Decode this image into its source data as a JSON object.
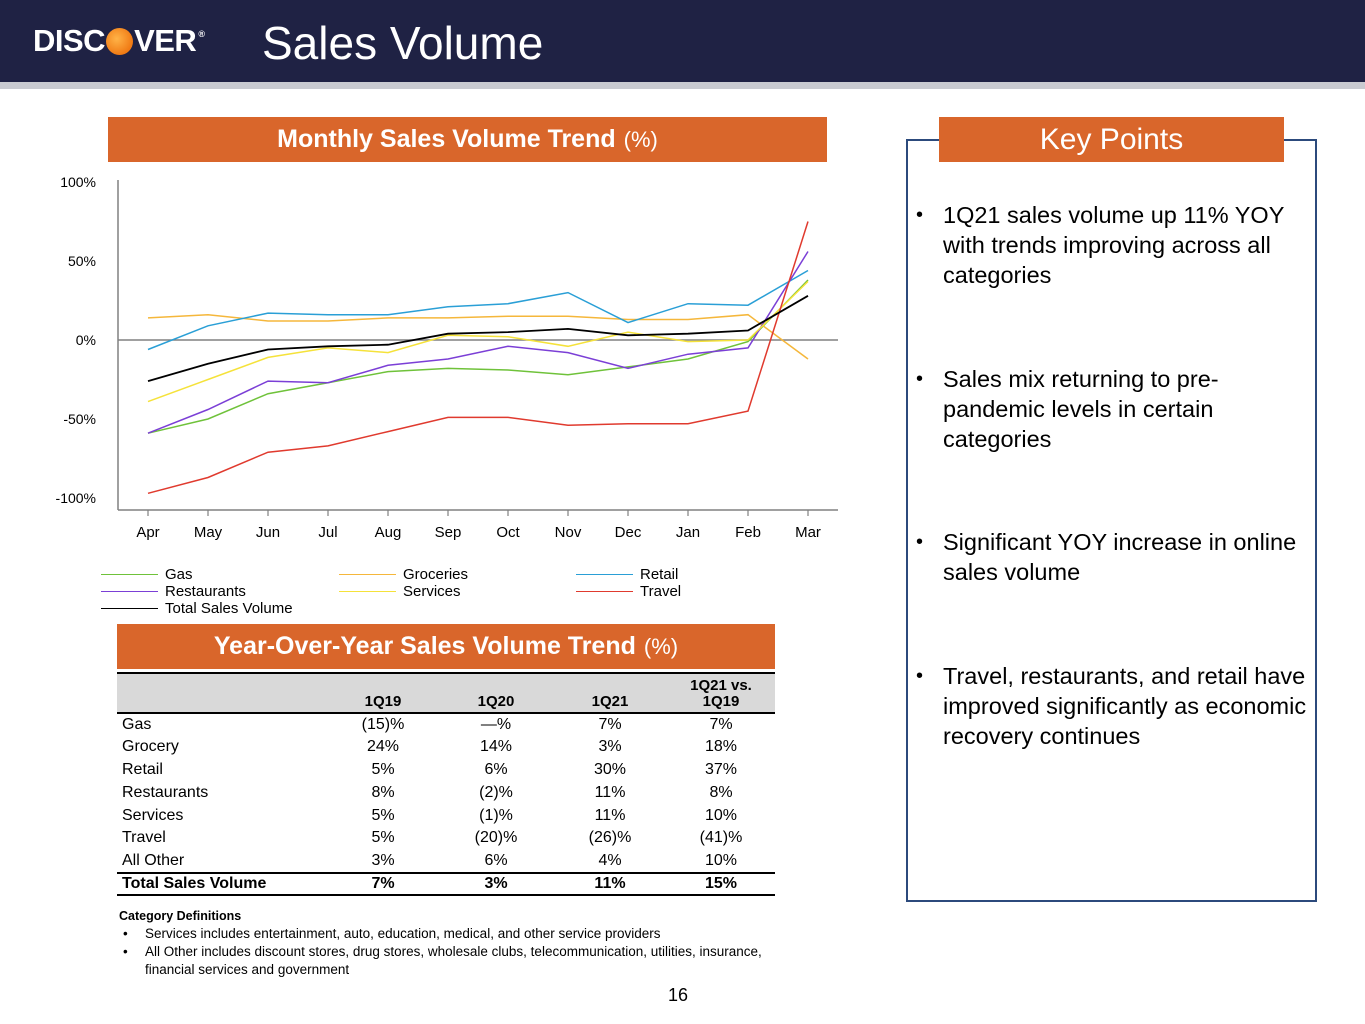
{
  "header": {
    "logo_text_1": "DISC",
    "logo_text_2": "VER",
    "logo_reg": "®",
    "title": "Sales Volume"
  },
  "monthly_banner": {
    "title": "Monthly Sales Volume Trend",
    "unit": "(%)"
  },
  "yoy_banner": {
    "title": "Year-Over-Year Sales Volume Trend",
    "unit": "(%)"
  },
  "chart_data": {
    "type": "line",
    "x": [
      "Apr",
      "May",
      "Jun",
      "Jul",
      "Aug",
      "Sep",
      "Oct",
      "Nov",
      "Dec",
      "Jan",
      "Feb",
      "Mar"
    ],
    "y_ticks": [
      "100%",
      "50%",
      "0%",
      "-50%",
      "-100%"
    ],
    "ylim": [
      -100,
      100
    ],
    "y_unit": "%",
    "grid": false,
    "legend_position": "bottom",
    "series": [
      {
        "name": "Gas",
        "color": "#6fc23a",
        "values": [
          -59,
          -50,
          -34,
          -27,
          -20,
          -18,
          -19,
          -22,
          -17,
          -12,
          -1,
          38
        ]
      },
      {
        "name": "Groceries",
        "color": "#f5b73b",
        "values": [
          14,
          16,
          12,
          12,
          14,
          14,
          15,
          15,
          13,
          13,
          16,
          -12
        ]
      },
      {
        "name": "Retail",
        "color": "#2a9fd6",
        "values": [
          -6,
          9,
          17,
          16,
          16,
          21,
          23,
          30,
          11,
          23,
          22,
          44
        ]
      },
      {
        "name": "Restaurants",
        "color": "#7b3fd6",
        "values": [
          -59,
          -44,
          -26,
          -27,
          -16,
          -12,
          -4,
          -8,
          -18,
          -9,
          -5,
          56
        ]
      },
      {
        "name": "Services",
        "color": "#f5e23a",
        "values": [
          -39,
          -25,
          -11,
          -5,
          -8,
          3,
          2,
          -4,
          5,
          -1,
          0,
          37
        ]
      },
      {
        "name": "Travel",
        "color": "#e03a2e",
        "values": [
          -97,
          -87,
          -71,
          -67,
          -58,
          -49,
          -49,
          -54,
          -53,
          -53,
          -45,
          75
        ]
      },
      {
        "name": "Total Sales Volume",
        "color": "#000000",
        "values": [
          -26,
          -15,
          -6,
          -4,
          -3,
          4,
          5,
          7,
          3,
          4,
          6,
          28
        ]
      }
    ]
  },
  "yoy_table": {
    "columns": [
      "",
      "1Q19",
      "1Q20",
      "1Q21",
      "1Q21 vs. 1Q19"
    ],
    "col4_line1": "1Q21 vs.",
    "col4_line2": "1Q19",
    "rows": [
      [
        "Gas",
        "(15)%",
        "—%",
        "7%",
        "7%"
      ],
      [
        "Grocery",
        "24%",
        "14%",
        "3%",
        "18%"
      ],
      [
        "Retail",
        "5%",
        "6%",
        "30%",
        "37%"
      ],
      [
        "Restaurants",
        "8%",
        "(2)%",
        "11%",
        "8%"
      ],
      [
        "Services",
        "5%",
        "(1)%",
        "11%",
        "10%"
      ],
      [
        "Travel",
        "5%",
        "(20)%",
        "(26)%",
        "(41)%"
      ],
      [
        "All Other",
        "3%",
        "6%",
        "4%",
        "10%"
      ]
    ],
    "total": [
      "Total Sales Volume",
      "7%",
      "3%",
      "11%",
      "15%"
    ]
  },
  "definitions": {
    "title": "Category Definitions",
    "bullet": "•",
    "items": [
      "Services includes entertainment, auto, education, medical, and other service providers",
      "All Other includes discount stores, drug stores, wholesale clubs, telecommunication, utilities, insurance, financial services and government"
    ]
  },
  "key_points": {
    "title": "Key Points",
    "bullet": "•",
    "items": [
      "1Q21 sales volume up 11% YOY with trends improving across all categories",
      "Sales mix returning to pre-pandemic levels in certain categories",
      "Significant YOY increase in online sales volume",
      "Travel, restaurants, and retail have improved significantly as economic recovery continues"
    ]
  },
  "page_number": "16"
}
